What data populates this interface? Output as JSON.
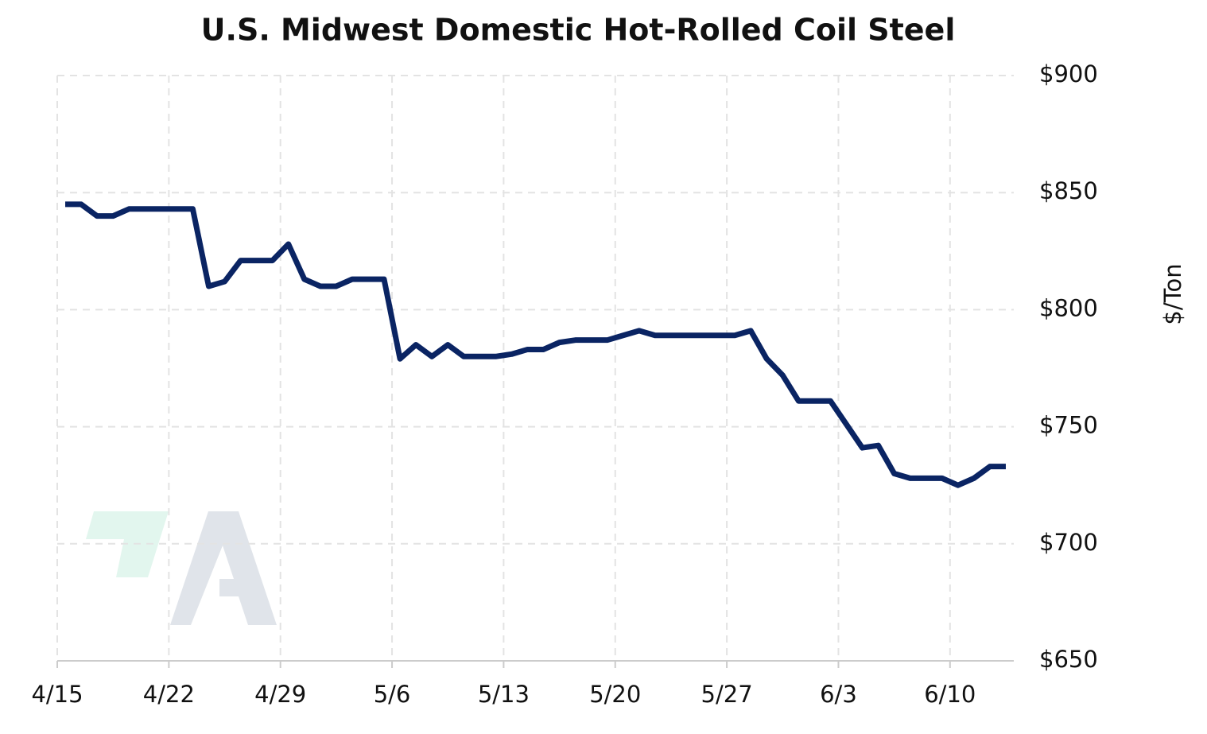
{
  "chart_data": {
    "type": "line",
    "title": "U.S. Midwest Domestic Hot-Rolled Coil Steel",
    "y_label": "$/Ton",
    "x": [
      0.5,
      1.5,
      2.5,
      3.5,
      4.5,
      5.5,
      6.5,
      7.5,
      8.5,
      9.5,
      10.5,
      11.5,
      12.5,
      13.5,
      14.5,
      15.5,
      16.5,
      17.5,
      18.5,
      19.5,
      20.5,
      21.5,
      22.5,
      23.5,
      24.5,
      25.5,
      26.5,
      27.5,
      28.5,
      29.5,
      30.5,
      31.5,
      32.5,
      33.5,
      34.5,
      35.5,
      36.5,
      37.5,
      38.5,
      39.5,
      40.5,
      41.5,
      42.5,
      43.5,
      44.5,
      45.5,
      46.5,
      47.5,
      48.5,
      49.5,
      50.5,
      51.5,
      52.5,
      53.5,
      54.5,
      55.5,
      56.5,
      57.5,
      58.5,
      59.5
    ],
    "values": [
      845,
      845,
      840,
      840,
      843,
      843,
      843,
      843,
      843,
      810,
      812,
      821,
      821,
      821,
      828,
      813,
      810,
      810,
      813,
      813,
      813,
      779,
      785,
      780,
      785,
      780,
      780,
      780,
      781,
      783,
      783,
      786,
      787,
      787,
      787,
      789,
      791,
      789,
      789,
      789,
      789,
      789,
      789,
      791,
      779,
      772,
      761,
      761,
      761,
      751,
      741,
      742,
      730,
      728,
      728,
      728,
      725,
      728,
      733,
      733
    ],
    "color": "#0a2463",
    "xlim": [
      0,
      60
    ],
    "xticks": [
      {
        "value": 0,
        "label": "4/15"
      },
      {
        "value": 7,
        "label": "4/22"
      },
      {
        "value": 14,
        "label": "4/29"
      },
      {
        "value": 21,
        "label": "5/6"
      },
      {
        "value": 28,
        "label": "5/13"
      },
      {
        "value": 35,
        "label": "5/20"
      },
      {
        "value": 42,
        "label": "5/27"
      },
      {
        "value": 49,
        "label": "6/3"
      },
      {
        "value": 56,
        "label": "6/10"
      }
    ],
    "ylim": [
      650,
      900
    ],
    "yticks": [
      {
        "value": 650,
        "label": "$650"
      },
      {
        "value": 700,
        "label": "$700"
      },
      {
        "value": 750,
        "label": "$750"
      },
      {
        "value": 800,
        "label": "$800"
      },
      {
        "value": 850,
        "label": "$850"
      },
      {
        "value": 900,
        "label": "$900"
      }
    ],
    "grid": true
  }
}
